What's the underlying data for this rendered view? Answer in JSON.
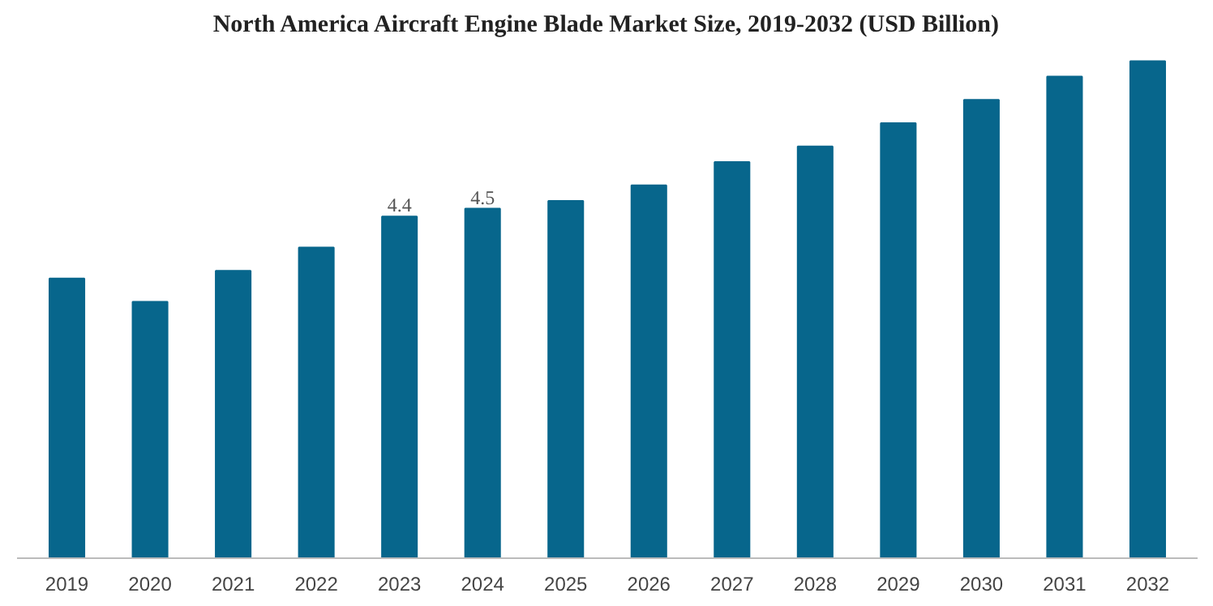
{
  "chart_data": {
    "type": "bar",
    "title": "North America Aircraft Engine Blade Market Size, 2019-2032 (USD Billion)",
    "categories": [
      "2019",
      "2020",
      "2021",
      "2022",
      "2023",
      "2024",
      "2025",
      "2026",
      "2027",
      "2028",
      "2029",
      "2030",
      "2031",
      "2032"
    ],
    "values": [
      3.6,
      3.3,
      3.7,
      4.0,
      4.4,
      4.5,
      4.6,
      4.8,
      5.1,
      5.3,
      5.6,
      5.9,
      6.2,
      6.4
    ],
    "value_labels": [
      null,
      null,
      null,
      null,
      "4.4",
      "4.5",
      null,
      null,
      null,
      null,
      null,
      null,
      null,
      null
    ],
    "color": "#07668c",
    "grid": false
  }
}
